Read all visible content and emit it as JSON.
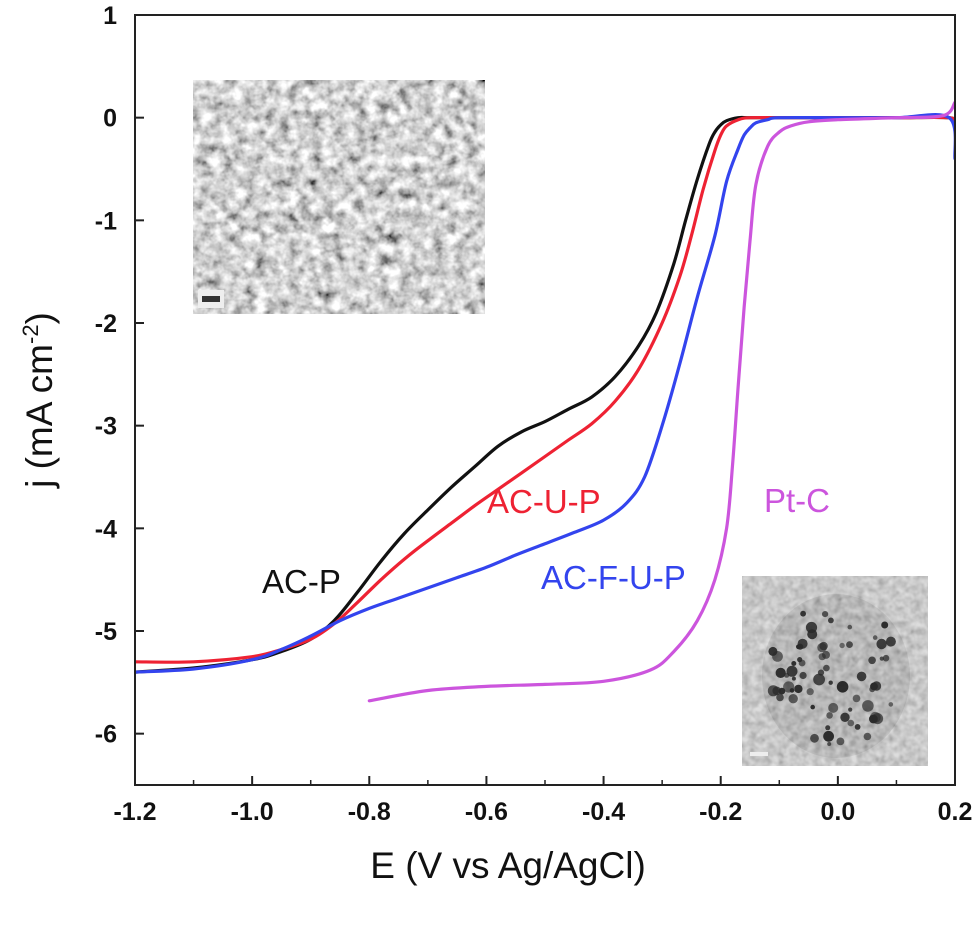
{
  "chart_data": {
    "type": "line",
    "xlabel": "E (V vs Ag/AgCl)",
    "ylabel": "j (mA cm",
    "ylabel_superscript": "-2",
    "ylabel_close": ")",
    "xlim": [
      -1.2,
      0.2
    ],
    "ylim": [
      -6.5,
      1
    ],
    "x_ticks": [
      -1.2,
      -1.0,
      -0.8,
      -0.6,
      -0.4,
      -0.2,
      0.0,
      0.2
    ],
    "x_tick_labels": [
      "-1.2",
      "-1.0",
      "-0.8",
      "-0.6",
      "-0.4",
      "-0.2",
      "0.0",
      "0.2"
    ],
    "y_ticks": [
      1,
      0,
      -1,
      -2,
      -3,
      -4,
      -5,
      -6
    ],
    "y_tick_labels": [
      "1",
      "0",
      "-1",
      "-2",
      "-3",
      "-4",
      "-5",
      "-6"
    ],
    "grid": false,
    "legend": "none (series labelled directly on the plot)",
    "insets": [
      "SEM micrograph (top-left)",
      "TEM micrograph (bottom-right)"
    ],
    "series": [
      {
        "name": "AC-P",
        "color": "#111111",
        "x": [
          -1.2,
          -1.1,
          -1.0,
          -0.95,
          -0.9,
          -0.86,
          -0.82,
          -0.78,
          -0.74,
          -0.7,
          -0.66,
          -0.62,
          -0.58,
          -0.54,
          -0.5,
          -0.46,
          -0.42,
          -0.38,
          -0.34,
          -0.31,
          -0.28,
          -0.26,
          -0.24,
          -0.22,
          -0.21,
          -0.2,
          -0.19,
          -0.17,
          -0.15,
          -0.1,
          0.0,
          0.1,
          0.19,
          0.2
        ],
        "y": [
          -5.4,
          -5.36,
          -5.28,
          -5.2,
          -5.08,
          -4.9,
          -4.62,
          -4.32,
          -4.05,
          -3.82,
          -3.6,
          -3.4,
          -3.2,
          -3.06,
          -2.96,
          -2.84,
          -2.72,
          -2.52,
          -2.22,
          -1.9,
          -1.42,
          -1.0,
          -0.6,
          -0.26,
          -0.14,
          -0.07,
          -0.03,
          0.0,
          0.0,
          0.0,
          0.0,
          0.0,
          0.0,
          -0.05
        ]
      },
      {
        "name": "AC-U-P",
        "color": "#ee2233",
        "x": [
          -1.2,
          -1.1,
          -1.0,
          -0.95,
          -0.9,
          -0.86,
          -0.82,
          -0.78,
          -0.74,
          -0.7,
          -0.66,
          -0.62,
          -0.58,
          -0.54,
          -0.5,
          -0.46,
          -0.42,
          -0.38,
          -0.34,
          -0.3,
          -0.27,
          -0.25,
          -0.23,
          -0.21,
          -0.2,
          -0.19,
          -0.17,
          -0.15,
          -0.1,
          0.0,
          0.1,
          0.19,
          0.2
        ],
        "y": [
          -5.3,
          -5.3,
          -5.25,
          -5.18,
          -5.08,
          -4.93,
          -4.72,
          -4.5,
          -4.3,
          -4.12,
          -3.95,
          -3.78,
          -3.62,
          -3.46,
          -3.3,
          -3.14,
          -2.98,
          -2.76,
          -2.45,
          -2.0,
          -1.55,
          -1.15,
          -0.7,
          -0.32,
          -0.17,
          -0.08,
          -0.02,
          0.0,
          0.0,
          0.0,
          0.0,
          0.0,
          -0.05
        ]
      },
      {
        "name": "AC-F-U-P",
        "color": "#3344ee",
        "x": [
          -1.2,
          -1.1,
          -1.0,
          -0.95,
          -0.9,
          -0.85,
          -0.8,
          -0.75,
          -0.7,
          -0.65,
          -0.6,
          -0.55,
          -0.5,
          -0.45,
          -0.4,
          -0.36,
          -0.33,
          -0.3,
          -0.27,
          -0.24,
          -0.21,
          -0.19,
          -0.17,
          -0.16,
          -0.15,
          -0.14,
          -0.12,
          -0.1,
          0.0,
          0.1,
          0.19,
          0.2
        ],
        "y": [
          -5.4,
          -5.37,
          -5.28,
          -5.18,
          -5.05,
          -4.9,
          -4.78,
          -4.68,
          -4.58,
          -4.48,
          -4.38,
          -4.26,
          -4.15,
          -4.04,
          -3.92,
          -3.75,
          -3.5,
          -3.0,
          -2.4,
          -1.75,
          -1.15,
          -0.62,
          -0.3,
          -0.17,
          -0.1,
          -0.05,
          -0.02,
          0.0,
          0.0,
          0.0,
          0.0,
          -0.4
        ]
      },
      {
        "name": "Pt-C",
        "color": "#cc55dd",
        "x": [
          -0.8,
          -0.7,
          -0.6,
          -0.5,
          -0.4,
          -0.32,
          -0.28,
          -0.24,
          -0.21,
          -0.19,
          -0.18,
          -0.17,
          -0.16,
          -0.15,
          -0.14,
          -0.12,
          -0.1,
          -0.08,
          -0.05,
          0.0,
          0.1,
          0.18,
          0.2
        ],
        "y": [
          -5.68,
          -5.58,
          -5.54,
          -5.52,
          -5.49,
          -5.38,
          -5.2,
          -4.9,
          -4.5,
          -4.0,
          -3.4,
          -2.6,
          -1.85,
          -1.2,
          -0.65,
          -0.28,
          -0.14,
          -0.08,
          -0.04,
          -0.02,
          0.0,
          0.02,
          0.15
        ]
      }
    ]
  }
}
